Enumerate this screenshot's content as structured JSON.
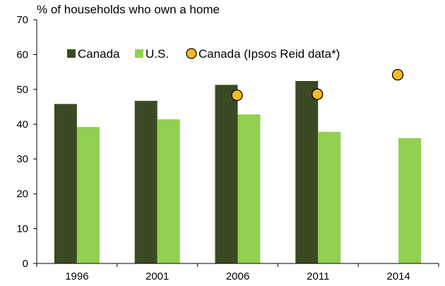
{
  "chart_data": {
    "type": "bar",
    "ylabel": "% of households who own a home",
    "categories": [
      "1996",
      "2001",
      "2006",
      "2011",
      "2014"
    ],
    "ylim": [
      0,
      70
    ],
    "yticks": [
      "0",
      "10",
      "20",
      "30",
      "40",
      "50",
      "60",
      "70"
    ],
    "grid": false,
    "legend_position": "top-left",
    "series": [
      {
        "name": "Canada",
        "kind": "bar",
        "color": "#3a4a22",
        "values": [
          45.8,
          46.7,
          51.3,
          52.4,
          null
        ]
      },
      {
        "name": "U.S.",
        "kind": "bar",
        "color": "#92d050",
        "values": [
          39.2,
          41.4,
          42.8,
          37.8,
          36.0
        ]
      },
      {
        "name": "Canada (Ipsos Reid data*)",
        "kind": "scatter",
        "color": "#f7b924",
        "values": [
          null,
          null,
          48.3,
          48.6,
          54.2
        ]
      }
    ]
  }
}
